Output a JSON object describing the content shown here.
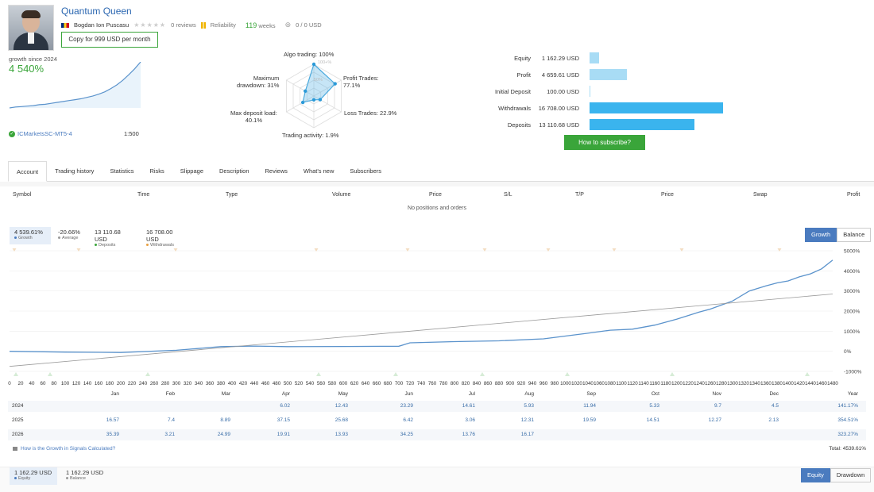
{
  "header": {
    "title": "Quantum Queen",
    "author": "Bogdan Ion Puscasu",
    "reviews": "0 reviews",
    "stars": "★★★★★",
    "reliability": "Reliability",
    "weeks_num": "119",
    "weeks_label": "weeks",
    "funds": "0 / 0 USD",
    "copy_button": "Copy for 999 USD per month"
  },
  "summary": {
    "growth_since": "growth since 2024",
    "growth_value": "4 540%",
    "server": "ICMarketsSC-MT5-4",
    "leverage": "1:500"
  },
  "mini_growth": [
    0,
    2,
    3,
    4,
    5,
    7,
    8,
    10,
    12,
    14,
    16,
    18,
    20,
    23,
    26,
    30,
    35,
    42,
    50,
    60,
    72,
    85,
    100
  ],
  "radar": {
    "algo_trading": "Algo trading: 100%",
    "profit_trades": "Profit Trades:\n77.1%",
    "loss_trades": "Loss Trades: 22.9%",
    "trading_activity": "Trading activity: 1.9%",
    "max_deposit_load": "Max deposit load:\n40.1%",
    "max_drawdown": "Maximum\ndrawdown: 31%",
    "ring_100": "100+%",
    "ring_50": "50%",
    "values": [
      1.0,
      0.771,
      0.229,
      0.019,
      0.401,
      0.31
    ]
  },
  "financials": {
    "items": [
      {
        "label": "Equity",
        "value": "1 162.29 USD",
        "amount": 1162.29,
        "color": "#a8dcf5"
      },
      {
        "label": "Profit",
        "value": "4 659.61 USD",
        "amount": 4659.61,
        "color": "#a8dcf5"
      },
      {
        "label": "Initial Deposit",
        "value": "100.00 USD",
        "amount": 100,
        "color": "#a8dcf5"
      },
      {
        "label": "Withdrawals",
        "value": "16 708.00 USD",
        "amount": 16708,
        "color": "#3ab4ee"
      },
      {
        "label": "Deposits",
        "value": "13 110.68 USD",
        "amount": 13110.68,
        "color": "#3ab4ee"
      }
    ],
    "subscribe_button": "How to subscribe?"
  },
  "tabs": [
    "Account",
    "Trading history",
    "Statistics",
    "Risks",
    "Slippage",
    "Description",
    "Reviews",
    "What's new",
    "Subscribers"
  ],
  "positions": {
    "columns": [
      "Symbol",
      "Time",
      "Type",
      "Volume",
      "Price",
      "S/L",
      "T/P",
      "Price",
      "Swap",
      "Profit"
    ],
    "empty_text": "No positions and orders"
  },
  "growth_stats": [
    {
      "value": "4 539.61%",
      "label": "Growth",
      "color": "#4a7bbf"
    },
    {
      "value": "-20.66%",
      "label": "Average",
      "color": "#999999"
    },
    {
      "value": "13 110.68 USD",
      "label": "Deposits",
      "color": "#3aa53a"
    },
    {
      "value": "16 708.00 USD",
      "label": "Withdrawals",
      "color": "#e8a040"
    }
  ],
  "chart_toggle": {
    "growth": "Growth",
    "balance": "Balance"
  },
  "chart_data": {
    "type": "line",
    "x_ticks": [
      "0",
      "20",
      "40",
      "60",
      "80",
      "100",
      "120",
      "140",
      "160",
      "180",
      "200",
      "220",
      "240",
      "260",
      "280",
      "300",
      "320",
      "340",
      "360",
      "380",
      "400",
      "420",
      "440",
      "460",
      "480",
      "500",
      "520",
      "540",
      "560",
      "580",
      "600",
      "620",
      "640",
      "660",
      "680",
      "700",
      "720",
      "740",
      "760",
      "780",
      "800",
      "820",
      "840",
      "860",
      "880",
      "900",
      "920",
      "940",
      "960",
      "980",
      "1000",
      "1020",
      "1040",
      "1060",
      "1080",
      "1100",
      "1120",
      "1140",
      "1160",
      "1180",
      "1200",
      "1220",
      "1240",
      "1260",
      "1280",
      "1300",
      "1320",
      "1340",
      "1360",
      "1380",
      "1400",
      "1420",
      "1440",
      "1460",
      "1480"
    ],
    "y_ticks": [
      "5000%",
      "4000%",
      "3000%",
      "2000%",
      "1000%",
      "0%",
      "-1000%"
    ],
    "ylim": [
      -1000,
      5000
    ],
    "xlim": [
      0,
      1480
    ],
    "months": [
      "Jan",
      "Feb",
      "Mar",
      "Apr",
      "May",
      "Jun",
      "Jul",
      "Aug",
      "Sep",
      "Oct",
      "Nov",
      "Dec"
    ],
    "series": [
      {
        "name": "Growth",
        "color": "#5b93cc",
        "points": [
          [
            0,
            0
          ],
          [
            100,
            -40
          ],
          [
            200,
            -60
          ],
          [
            300,
            50
          ],
          [
            380,
            230
          ],
          [
            440,
            260
          ],
          [
            500,
            230
          ],
          [
            600,
            240
          ],
          [
            700,
            250
          ],
          [
            720,
            420
          ],
          [
            800,
            480
          ],
          [
            880,
            520
          ],
          [
            960,
            620
          ],
          [
            1040,
            900
          ],
          [
            1080,
            1050
          ],
          [
            1120,
            1100
          ],
          [
            1160,
            1300
          ],
          [
            1200,
            1600
          ],
          [
            1240,
            1950
          ],
          [
            1260,
            2100
          ],
          [
            1300,
            2500
          ],
          [
            1330,
            3000
          ],
          [
            1360,
            3250
          ],
          [
            1380,
            3400
          ],
          [
            1400,
            3500
          ],
          [
            1420,
            3700
          ],
          [
            1440,
            3850
          ],
          [
            1460,
            4100
          ],
          [
            1480,
            4539
          ]
        ]
      },
      {
        "name": "Trend",
        "color": "#999999",
        "points": [
          [
            0,
            -750
          ],
          [
            1480,
            2850
          ]
        ]
      }
    ]
  },
  "monthly": {
    "header_year": "Year",
    "rows": [
      {
        "year": "2024",
        "values": [
          "",
          "",
          "",
          "6.02",
          "12.43",
          "23.29",
          "14.61",
          "5.93",
          "11.94",
          "5.33",
          "9.7",
          "4.5"
        ],
        "total": "141.17%"
      },
      {
        "year": "2025",
        "values": [
          "16.57",
          "7.4",
          "8.89",
          "37.15",
          "25.68",
          "6.42",
          "3.06",
          "12.31",
          "19.59",
          "14.51",
          "12.27",
          "2.13"
        ],
        "total": "354.51%"
      },
      {
        "year": "2026",
        "values": [
          "35.39",
          "3.21",
          "24.99",
          "19.91",
          "13.93",
          "34.25",
          "13.76",
          "16.17",
          "",
          "",
          "",
          ""
        ],
        "total": "323.27%"
      }
    ],
    "calc_link": "How is the Growth in Signals Calculated?",
    "total": "Total: 4539.61%"
  },
  "equity": {
    "items": [
      {
        "value": "1 162.29 USD",
        "label": "Equity",
        "color": "#4a7bbf"
      },
      {
        "value": "1 162.29 USD",
        "label": "Balance",
        "color": "#999999"
      }
    ],
    "toggle_equity": "Equity",
    "toggle_drawdown": "Drawdown"
  }
}
